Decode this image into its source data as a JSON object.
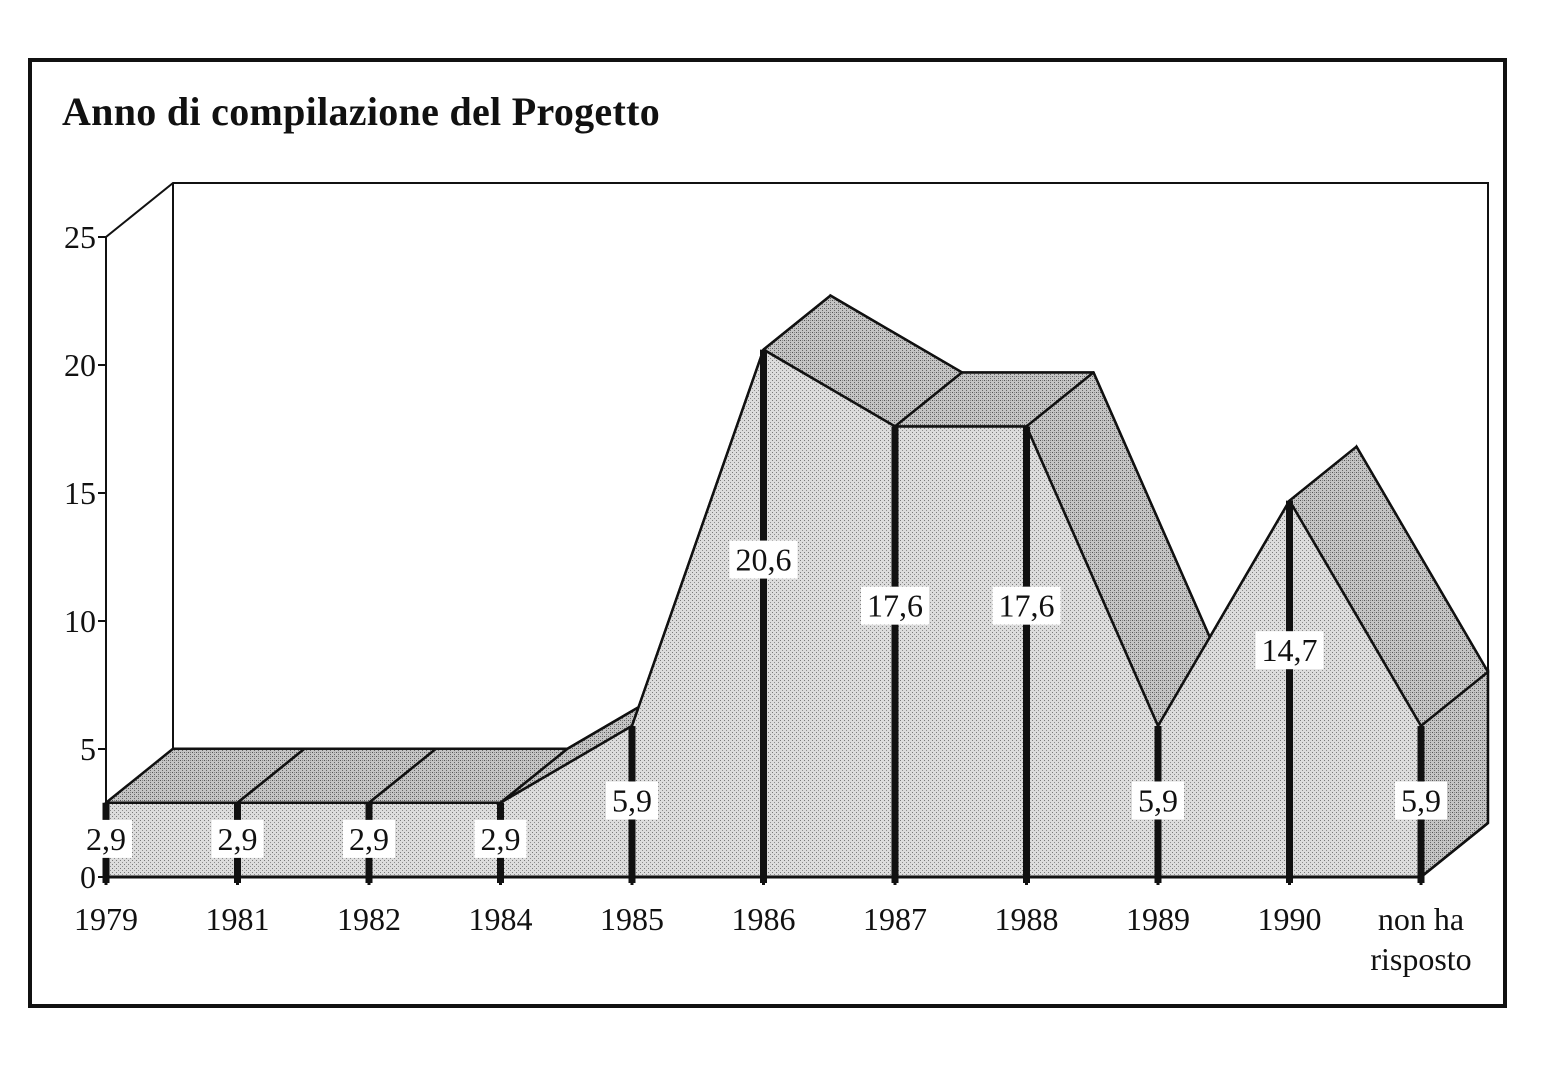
{
  "chart_data": {
    "type": "area",
    "title": "Anno di compilazione del Progetto",
    "categories": [
      "1979",
      "1981",
      "1982",
      "1984",
      "1985",
      "1986",
      "1987",
      "1988",
      "1989",
      "1990",
      "non ha risposto"
    ],
    "category_lines": [
      [
        "1979"
      ],
      [
        "1981"
      ],
      [
        "1982"
      ],
      [
        "1984"
      ],
      [
        "1985"
      ],
      [
        "1986"
      ],
      [
        "1987"
      ],
      [
        "1988"
      ],
      [
        "1989"
      ],
      [
        "1990"
      ],
      [
        "non ha",
        "risposto"
      ]
    ],
    "values": [
      2.9,
      2.9,
      2.9,
      2.9,
      5.9,
      20.6,
      17.6,
      17.6,
      5.9,
      14.7,
      5.9
    ],
    "value_labels": [
      "2,9",
      "2,9",
      "2,9",
      "2,9",
      "5,9",
      "20,6",
      "17,6",
      "17,6",
      "5,9",
      "14,7",
      "5,9"
    ],
    "yticks": [
      "0",
      "5",
      "10",
      "15",
      "20",
      "25"
    ],
    "ylim": [
      0,
      25
    ],
    "xlabel": "",
    "ylabel": "",
    "three_d": true,
    "grid": false,
    "fill_color": "#d2d2d2",
    "top_color": "#bdbdbd",
    "line_color": "#111111"
  }
}
